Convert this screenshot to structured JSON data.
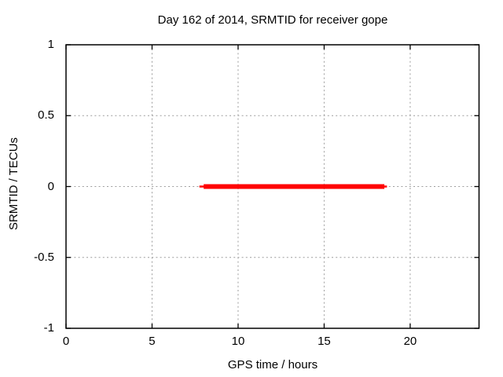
{
  "chart_data": {
    "type": "line",
    "title": "Day 162 of 2014, SRMTID for receiver gope",
    "xlabel": "GPS time / hours",
    "ylabel": "SRMTID / TECUs",
    "xlim": [
      0,
      24
    ],
    "ylim": [
      -1,
      1
    ],
    "xticks": [
      0,
      5,
      10,
      15,
      20
    ],
    "xtick_labels": [
      "0",
      "5",
      "10",
      "15",
      "20"
    ],
    "yticks": [
      -1,
      -0.5,
      0,
      0.5,
      1
    ],
    "ytick_labels": [
      "-1",
      "-0.5",
      "0",
      "0.5",
      "1"
    ],
    "grid": true,
    "legend": false,
    "colors": {
      "line": "#ff0000",
      "grid": "#9e9e9e",
      "axis": "#000000",
      "text": "#000000",
      "background": "#ffffff"
    },
    "series": [
      {
        "name": "SRMTID",
        "color": "#ff0000",
        "y_value": 0,
        "x_start": 8.0,
        "x_end": 18.5,
        "thin_tip_start": 7.75,
        "thin_tip_end": 18.65
      }
    ]
  }
}
